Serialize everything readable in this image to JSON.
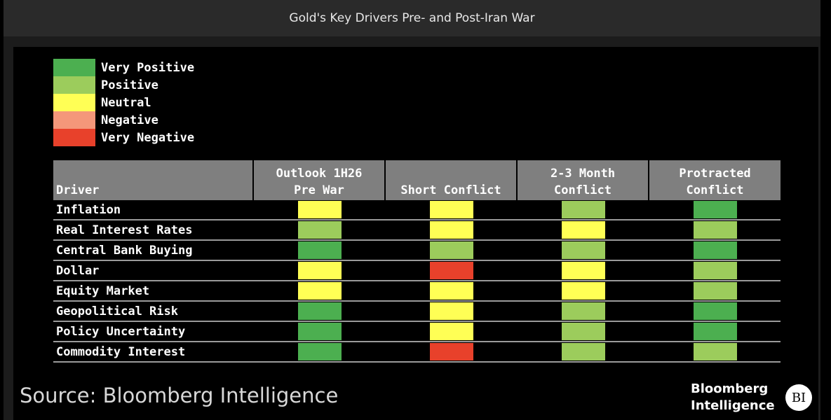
{
  "title": "Gold's Key Drivers Pre- and Post-Iran War",
  "source": "Source: Bloomberg Intelligence",
  "logo": {
    "line1": "Bloomberg",
    "line2": "Intelligence",
    "badge": "BI"
  },
  "colors": {
    "Very Positive": "#4caf50",
    "Positive": "#9ccc5c",
    "Neutral": "#ffff55",
    "Negative": "#f4977a",
    "Very Negative": "#e8412b"
  },
  "chart_data": {
    "type": "table",
    "legend": [
      "Very Positive",
      "Positive",
      "Neutral",
      "Negative",
      "Very Negative"
    ],
    "columns": [
      "Driver",
      "Outlook 1H26 Pre War",
      "Short Conflict",
      "2-3 Month Conflict",
      "Protracted Conflict"
    ],
    "rows": [
      {
        "driver": "Inflation",
        "values": [
          "Neutral",
          "Neutral",
          "Positive",
          "Very Positive"
        ]
      },
      {
        "driver": "Real Interest Rates",
        "values": [
          "Positive",
          "Neutral",
          "Neutral",
          "Positive"
        ]
      },
      {
        "driver": "Central Bank Buying",
        "values": [
          "Very Positive",
          "Positive",
          "Positive",
          "Very Positive"
        ]
      },
      {
        "driver": "Dollar",
        "values": [
          "Neutral",
          "Very Negative",
          "Neutral",
          "Positive"
        ]
      },
      {
        "driver": "Equity Market",
        "values": [
          "Neutral",
          "Neutral",
          "Neutral",
          "Positive"
        ]
      },
      {
        "driver": "Geopolitical Risk",
        "values": [
          "Very Positive",
          "Neutral",
          "Positive",
          "Very Positive"
        ]
      },
      {
        "driver": "Policy Uncertainty",
        "values": [
          "Very Positive",
          "Neutral",
          "Positive",
          "Very Positive"
        ]
      },
      {
        "driver": "Commodity Interest",
        "values": [
          "Very Positive",
          "Very Negative",
          "Positive",
          "Positive"
        ]
      }
    ]
  }
}
